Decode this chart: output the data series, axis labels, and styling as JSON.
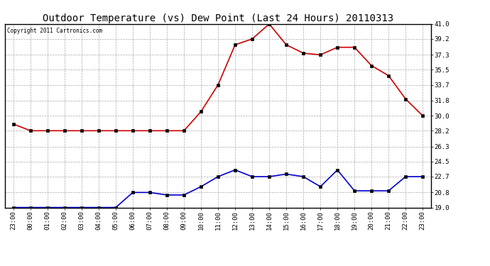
{
  "title": "Outdoor Temperature (vs) Dew Point (Last 24 Hours) 20110313",
  "copyright": "Copyright 2011 Cartronics.com",
  "x_labels": [
    "23:00",
    "00:00",
    "01:00",
    "02:00",
    "03:00",
    "04:00",
    "05:00",
    "06:00",
    "07:00",
    "08:00",
    "09:00",
    "10:00",
    "11:00",
    "12:00",
    "13:00",
    "14:00",
    "15:00",
    "16:00",
    "17:00",
    "18:00",
    "19:00",
    "20:00",
    "21:00",
    "22:00",
    "23:00"
  ],
  "temp_values": [
    29.0,
    28.2,
    28.2,
    28.2,
    28.2,
    28.2,
    28.2,
    28.2,
    28.2,
    28.2,
    28.2,
    30.5,
    33.7,
    38.5,
    39.2,
    41.0,
    38.5,
    37.5,
    37.3,
    38.2,
    38.2,
    36.0,
    34.8,
    32.0,
    30.0
  ],
  "dew_values": [
    19.0,
    19.0,
    19.0,
    19.0,
    19.0,
    19.0,
    19.0,
    20.8,
    20.8,
    20.5,
    20.5,
    21.5,
    22.7,
    23.5,
    22.7,
    22.7,
    23.0,
    22.7,
    21.5,
    23.5,
    21.0,
    21.0,
    21.0,
    22.7,
    22.7
  ],
  "temp_color": "#cc0000",
  "dew_color": "#0000cc",
  "bg_color": "#ffffff",
  "grid_color": "#aaaaaa",
  "y_ticks": [
    19.0,
    20.8,
    22.7,
    24.5,
    26.3,
    28.2,
    30.0,
    31.8,
    33.7,
    35.5,
    37.3,
    39.2,
    41.0
  ],
  "y_min": 19.0,
  "y_max": 41.0,
  "marker": "s",
  "marker_size": 2.5,
  "linewidth": 1.2,
  "title_fontsize": 10,
  "tick_fontsize": 6.5,
  "copyright_fontsize": 5.5
}
